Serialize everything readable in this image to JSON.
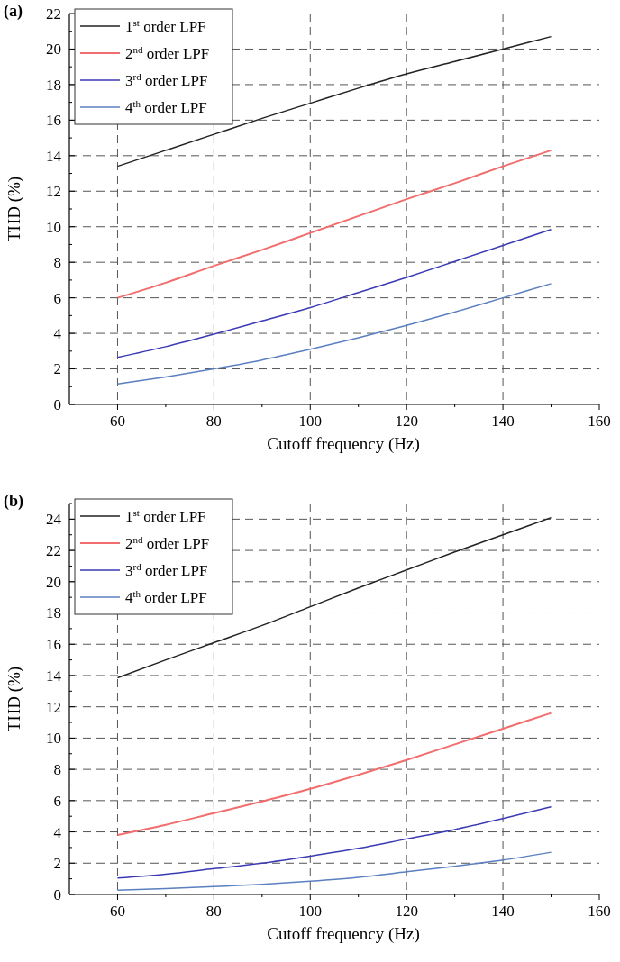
{
  "chart_data": [
    {
      "type": "line",
      "title": "(a)",
      "xlabel": "Cutoff frequency (Hz)",
      "ylabel": "THD (%)",
      "x": [
        60,
        70,
        80,
        90,
        100,
        110,
        120,
        130,
        140,
        150
      ],
      "xlim": [
        50,
        160
      ],
      "xticks": [
        60,
        80,
        100,
        120,
        140,
        160
      ],
      "ylim": [
        0,
        22
      ],
      "yticks": [
        0,
        2,
        4,
        6,
        8,
        10,
        12,
        14,
        16,
        18,
        20,
        22
      ],
      "grid": true,
      "legend": "top left",
      "line_style": "solid",
      "series": [
        {
          "name": "1$^{st}$ order LPF",
          "color": "#222222",
          "values": [
            13.4,
            14.3,
            15.2,
            16.1,
            16.95,
            17.8,
            18.6,
            19.3,
            20.0,
            20.7
          ]
        },
        {
          "name": "2$^{nd}$ order LPF",
          "color": "#f26d6d",
          "values": [
            6.0,
            6.85,
            7.8,
            8.7,
            9.65,
            10.6,
            11.55,
            12.45,
            13.4,
            14.3
          ]
        },
        {
          "name": "3$^{rd}$ order LPF",
          "color": "#3a3ab5",
          "values": [
            2.65,
            3.25,
            3.95,
            4.7,
            5.45,
            6.3,
            7.15,
            8.05,
            8.95,
            9.85
          ]
        },
        {
          "name": "4$^{th}$ order LPF",
          "color": "#5b7fc0",
          "values": [
            1.15,
            1.55,
            2.0,
            2.5,
            3.1,
            3.75,
            4.45,
            5.2,
            6.0,
            6.8
          ]
        }
      ]
    },
    {
      "type": "line",
      "title": "(b)",
      "xlabel": "Cutoff frequency (Hz)",
      "ylabel": "THD (%)",
      "x": [
        60,
        70,
        80,
        90,
        100,
        110,
        120,
        130,
        140,
        150
      ],
      "xlim": [
        50,
        160
      ],
      "xticks": [
        60,
        80,
        100,
        120,
        140,
        160
      ],
      "ylim": [
        0,
        25
      ],
      "yticks": [
        0,
        2,
        4,
        6,
        8,
        10,
        12,
        14,
        16,
        18,
        20,
        22,
        24
      ],
      "grid": true,
      "legend": "top left",
      "line_style": "solid",
      "series": [
        {
          "name": "1$^{st}$ order LPF",
          "color": "#222222",
          "values": [
            13.85,
            15.0,
            16.1,
            17.2,
            18.4,
            19.6,
            20.75,
            21.9,
            23.0,
            24.1
          ]
        },
        {
          "name": "2$^{nd}$ order LPF",
          "color": "#f26d6d",
          "values": [
            3.8,
            4.45,
            5.2,
            5.95,
            6.75,
            7.65,
            8.6,
            9.6,
            10.6,
            11.6
          ]
        },
        {
          "name": "3$^{rd}$ order LPF",
          "color": "#3a3ab5",
          "values": [
            1.05,
            1.3,
            1.65,
            2.0,
            2.45,
            2.95,
            3.55,
            4.15,
            4.85,
            5.6
          ]
        },
        {
          "name": "4$^{th}$ order LPF",
          "color": "#5b7fc0",
          "values": [
            0.28,
            0.38,
            0.5,
            0.65,
            0.85,
            1.1,
            1.45,
            1.8,
            2.2,
            2.7
          ]
        }
      ]
    }
  ]
}
